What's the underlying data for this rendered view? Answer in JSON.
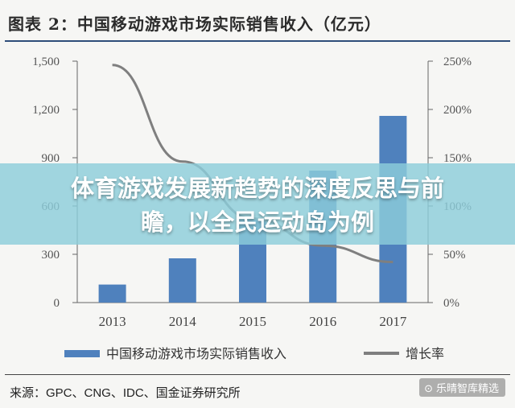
{
  "header": {
    "title": "图表 2：中国移动游戏市场实际销售收入（亿元）"
  },
  "banner": {
    "line1": "体育游戏发展新趋势的深度反思与前",
    "line2": "瞻，以全民运动岛为例"
  },
  "source": {
    "text": "来源：GPC、CNG、IDC、国金证券研究所"
  },
  "watermark": {
    "text": "乐晴智库精选",
    "icon": "wechat-icon"
  },
  "colors": {
    "bar": "#4f81bd",
    "line": "#7f7f7f",
    "banner": "#8ccdda",
    "rule": "#2e4d7a"
  },
  "chart_data": {
    "type": "bar",
    "categories": [
      "2013",
      "2014",
      "2015",
      "2016",
      "2017"
    ],
    "series": [
      {
        "name": "中国移动游戏市场实际销售收入",
        "type": "bar",
        "axis": "left",
        "values": [
          112,
          275,
          515,
          820,
          1160
        ]
      },
      {
        "name": "增长率",
        "type": "line",
        "axis": "right",
        "values": [
          246,
          146,
          87,
          59,
          42
        ]
      }
    ],
    "y_left": {
      "ticks": [
        "1,500",
        "1,200",
        "900",
        "600",
        "300",
        "0"
      ],
      "tick_values": [
        1500,
        1200,
        900,
        600,
        300,
        0
      ],
      "ylim": [
        0,
        1500
      ]
    },
    "y_right": {
      "ticks": [
        "250%",
        "200%",
        "150%",
        "100%",
        "50%",
        "0%"
      ],
      "tick_values": [
        250,
        200,
        150,
        100,
        50,
        0
      ],
      "ylim": [
        0,
        250
      ]
    },
    "grid": false,
    "legend": "bottom"
  }
}
